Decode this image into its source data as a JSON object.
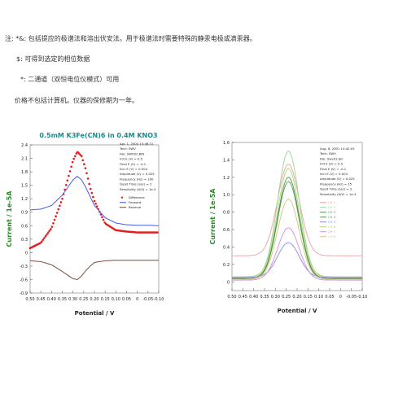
{
  "notes": {
    "line1": "注: *&: 包括提应的极谱法和溶出伏安法。用于极谱法时需要特殊的静汞电极或滴汞器。",
    "line2": "$: 可得到选定的相位数据",
    "line3": "*: 二通道（双恒电位仪模式）可用",
    "line4": "价格不包括计算机。仪器的保修期为一年。"
  },
  "colors": {
    "red": "#e41a1c",
    "blue": "#4a5ae8",
    "brown": "#7a4a3a",
    "green": "#2a8a2a",
    "title_teal": "#1a8a8a"
  },
  "chart_data": [
    {
      "type": "line",
      "title": "0.5mM K3Fe(CN)6 in 0.4M KNO3",
      "xlabel": "Potential / V",
      "ylabel": "Current / 1e-5A",
      "xlim": [
        0.5,
        -0.1
      ],
      "ylim": [
        -0.9,
        2.4
      ],
      "x_ticks": [
        "0.50",
        "0.45",
        "0.40",
        "0.35",
        "0.30",
        "0.25",
        "0.20",
        "0.15",
        "0.10",
        "0.05",
        "0",
        "-0.05",
        "-0.10"
      ],
      "y_ticks": [
        "2.4",
        "2.1",
        "1.8",
        "1.5",
        "1.2",
        "0.9",
        "0.6",
        "0.3",
        "0",
        "-0.3",
        "-0.6",
        "-0.9"
      ],
      "info": [
        "Apr. 1, 2004   15:46:31",
        "Tech: SWV",
        "File: SWV02.BIN",
        "Init E (V) = 0.5",
        "Final E (V) = -0.1",
        "Incr E (V) = 0.004",
        "Amplitude (V) = 0.025",
        "Frequency (Hz) = 100",
        "Quiet Time (sec) = 2",
        "Sensitivity (A/V) = 1e-5"
      ],
      "legend_position": "right",
      "x": [
        0.5,
        0.45,
        0.4,
        0.35,
        0.3,
        0.28,
        0.26,
        0.24,
        0.22,
        0.2,
        0.15,
        0.1,
        0.05,
        0.0,
        -0.05,
        -0.1
      ],
      "series": [
        {
          "name": "Difference",
          "color": "#e41a1c",
          "style": "markers",
          "values": [
            0.1,
            0.22,
            0.55,
            1.2,
            2.05,
            2.25,
            2.15,
            1.85,
            1.45,
            1.15,
            0.65,
            0.5,
            0.47,
            0.45,
            0.45,
            0.45
          ]
        },
        {
          "name": "Forward",
          "color": "#4a5ae8",
          "style": "line",
          "values": [
            0.95,
            0.97,
            1.05,
            1.28,
            1.62,
            1.7,
            1.62,
            1.45,
            1.25,
            1.05,
            0.78,
            0.66,
            0.62,
            0.61,
            0.61,
            0.6
          ]
        },
        {
          "name": "Reverse",
          "color": "#7a4a3a",
          "style": "line",
          "values": [
            -0.18,
            -0.2,
            -0.27,
            -0.42,
            -0.58,
            -0.6,
            -0.52,
            -0.4,
            -0.3,
            -0.22,
            -0.18,
            -0.17,
            -0.17,
            -0.17,
            -0.17,
            -0.17
          ]
        }
      ]
    },
    {
      "type": "line",
      "title": "",
      "xlabel": "Potential / V",
      "ylabel": "Current / 1e-5A",
      "xlim": [
        0.5,
        -0.1
      ],
      "ylim": [
        -0.1,
        1.6
      ],
      "x_ticks": [
        "0.50",
        "0.45",
        "0.40",
        "0.35",
        "0.30",
        "0.25",
        "0.20",
        "0.15",
        "0.10",
        "0.05",
        "0",
        "-0.05",
        "-0.10"
      ],
      "y_ticks": [
        "1.6",
        "1.4",
        "1.2",
        "1.0",
        "0.8",
        "0.6",
        "0.4",
        "0.2",
        "0"
      ],
      "info": [
        "Aug. 8, 2001   14:42:03",
        "Tech: SWV",
        "File: Swv01.bin",
        "Init E (V) = 0.5",
        "Final E (V) = -0.1",
        "Incr E (V) = 0.004",
        "Amplitude (V) = 0.025",
        "Frequency (Hz) = 15",
        "Quiet Time (sec) = 2",
        "Sensitivity (A/V) = 1e-5"
      ],
      "legend_position": "right",
      "peak_x": 0.24,
      "series": [
        {
          "name": "CH 1",
          "color": "#f0a0a0",
          "peak": 1.35,
          "base": 0.3
        },
        {
          "name": "CH 2",
          "color": "#9ad29a",
          "peak": 1.5,
          "base": 0.05
        },
        {
          "name": "CH 3",
          "color": "#5a8a5a",
          "peak": 1.2,
          "base": 0.04
        },
        {
          "name": "CH 4",
          "color": "#4aa04a",
          "peak": 1.15,
          "base": 0.03
        },
        {
          "name": "CH 5",
          "color": "#8a8aea",
          "peak": 0.45,
          "base": 0.05
        },
        {
          "name": "CH 6",
          "color": "#b0d86a",
          "peak": 1.3,
          "base": 0.06
        },
        {
          "name": "CH 7",
          "color": "#cf92cf",
          "peak": 0.62,
          "base": 0.02
        },
        {
          "name": "CH 8",
          "color": "#d8c27a",
          "peak": 0.95,
          "base": 0.03
        }
      ]
    }
  ]
}
